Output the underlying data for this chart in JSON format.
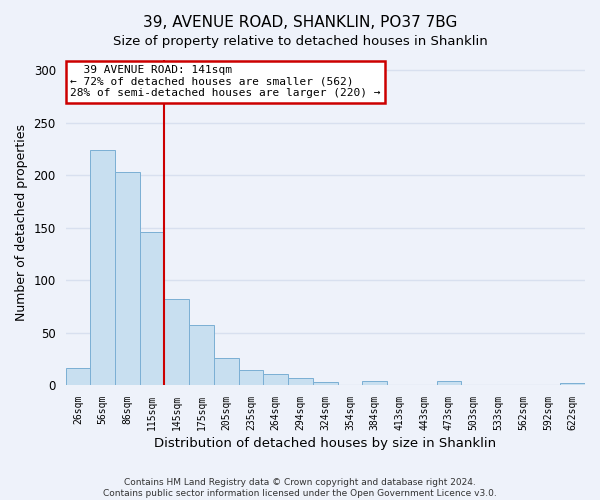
{
  "title": "39, AVENUE ROAD, SHANKLIN, PO37 7BG",
  "subtitle": "Size of property relative to detached houses in Shanklin",
  "xlabel": "Distribution of detached houses by size in Shanklin",
  "ylabel": "Number of detached properties",
  "footer_lines": [
    "Contains HM Land Registry data © Crown copyright and database right 2024.",
    "Contains public sector information licensed under the Open Government Licence v3.0."
  ],
  "categories": [
    "26sqm",
    "56sqm",
    "86sqm",
    "115sqm",
    "145sqm",
    "175sqm",
    "205sqm",
    "235sqm",
    "264sqm",
    "294sqm",
    "324sqm",
    "354sqm",
    "384sqm",
    "413sqm",
    "443sqm",
    "473sqm",
    "503sqm",
    "533sqm",
    "562sqm",
    "592sqm",
    "622sqm"
  ],
  "values": [
    16,
    224,
    203,
    146,
    82,
    57,
    26,
    14,
    11,
    7,
    3,
    0,
    4,
    0,
    0,
    4,
    0,
    0,
    0,
    0,
    2
  ],
  "bar_color": "#c8dff0",
  "bar_edge_color": "#7bafd4",
  "vline_x": 3.5,
  "vline_color": "#cc0000",
  "annotation_title": "39 AVENUE ROAD: 141sqm",
  "annotation_line1": "← 72% of detached houses are smaller (562)",
  "annotation_line2": "28% of semi-detached houses are larger (220) →",
  "annotation_box_color": "white",
  "annotation_box_edge_color": "#cc0000",
  "ylim": [
    0,
    310
  ],
  "yticks": [
    0,
    50,
    100,
    150,
    200,
    250,
    300
  ],
  "background_color": "#eef2fa",
  "grid_color": "#d8e0ef",
  "title_fontsize": 11,
  "subtitle_fontsize": 9.5
}
